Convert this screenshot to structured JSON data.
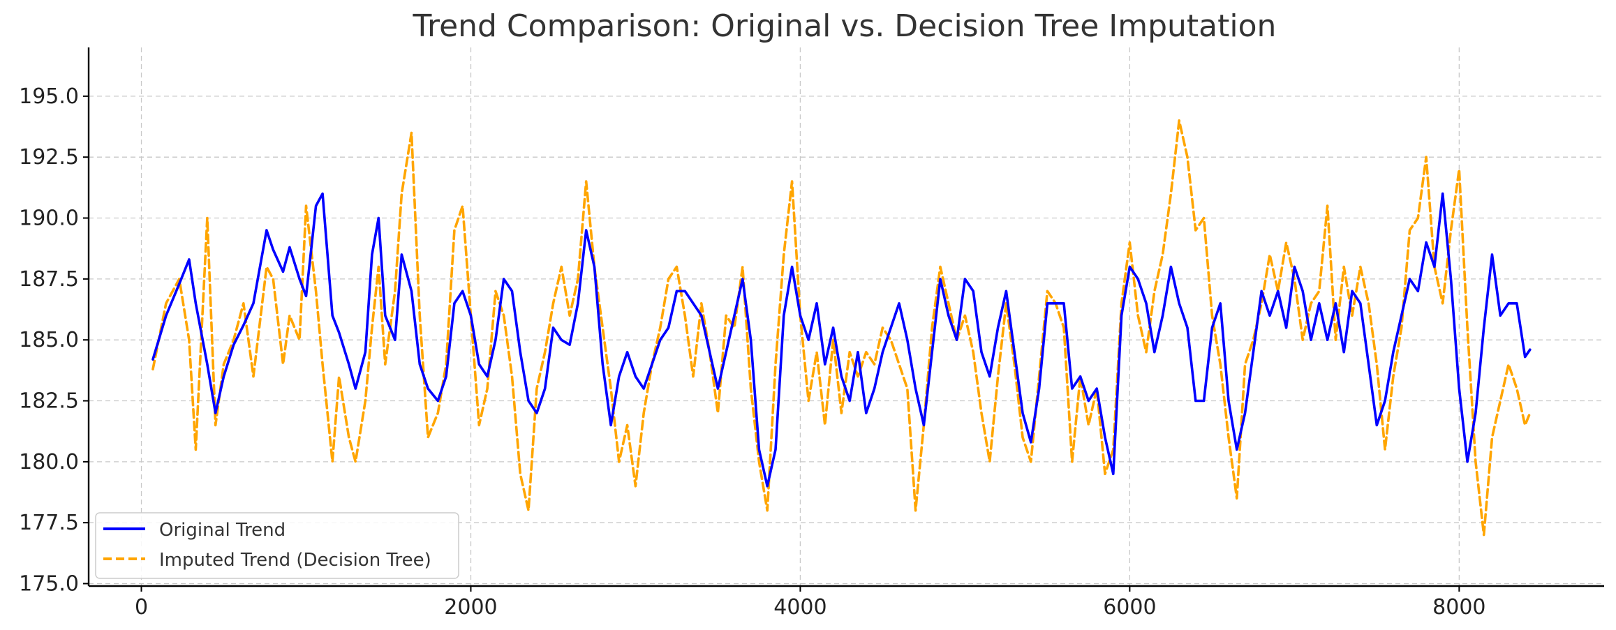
{
  "chart_data": {
    "type": "line",
    "title": "Trend Comparison: Original vs. Decision Tree Imputation",
    "xlabel": "",
    "ylabel": "",
    "xlim": [
      -320,
      8880
    ],
    "ylim": [
      174.9,
      197.0
    ],
    "xticks": [
      0,
      2000,
      4000,
      6000,
      8000
    ],
    "xtick_labels": [
      "0",
      "2000",
      "4000",
      "6000",
      "8000"
    ],
    "yticks": [
      175.0,
      177.5,
      180.0,
      182.5,
      185.0,
      187.5,
      190.0,
      192.5,
      195.0
    ],
    "ytick_labels": [
      "175.0",
      "177.5",
      "180.0",
      "182.5",
      "185.0",
      "187.5",
      "190.0",
      "192.5",
      "195.0"
    ],
    "grid": true,
    "legend": {
      "position": "lower-left"
    },
    "series": [
      {
        "name": "Original Trend",
        "color": "#0000ff",
        "style": "solid",
        "x": [
          70,
          150,
          230,
          290,
          330,
          400,
          450,
          500,
          560,
          620,
          680,
          760,
          800,
          860,
          900,
          960,
          1000,
          1060,
          1100,
          1160,
          1200,
          1260,
          1300,
          1360,
          1400,
          1440,
          1480,
          1540,
          1580,
          1640,
          1690,
          1740,
          1800,
          1850,
          1900,
          1950,
          2000,
          2050,
          2100,
          2150,
          2200,
          2250,
          2300,
          2350,
          2400,
          2450,
          2500,
          2550,
          2600,
          2650,
          2700,
          2750,
          2800,
          2850,
          2900,
          2950,
          3000,
          3050,
          3100,
          3150,
          3200,
          3250,
          3300,
          3350,
          3400,
          3450,
          3500,
          3550,
          3600,
          3650,
          3700,
          3750,
          3800,
          3850,
          3900,
          3950,
          4000,
          4050,
          4100,
          4150,
          4200,
          4250,
          4300,
          4350,
          4400,
          4450,
          4500,
          4550,
          4600,
          4650,
          4700,
          4750,
          4800,
          4850,
          4900,
          4950,
          5000,
          5050,
          5100,
          5150,
          5200,
          5250,
          5300,
          5350,
          5400,
          5450,
          5500,
          5550,
          5600,
          5650,
          5700,
          5750,
          5800,
          5850,
          5900,
          5950,
          6000,
          6050,
          6100,
          6150,
          6200,
          6250,
          6300,
          6350,
          6400,
          6450,
          6500,
          6550,
          6600,
          6650,
          6700,
          6750,
          6800,
          6850,
          6900,
          6950,
          7000,
          7050,
          7100,
          7150,
          7200,
          7250,
          7300,
          7350,
          7400,
          7450,
          7500,
          7550,
          7600,
          7650,
          7700,
          7750,
          7800,
          7850,
          7900,
          7950,
          8000,
          8050,
          8100,
          8150,
          8200,
          8250,
          8300,
          8350,
          8400,
          8430
        ],
        "y": [
          184.2,
          186.0,
          187.3,
          188.3,
          186.5,
          184.0,
          182.0,
          183.5,
          184.8,
          185.6,
          186.5,
          189.5,
          188.7,
          187.8,
          188.8,
          187.5,
          186.8,
          190.5,
          191.0,
          186.0,
          185.3,
          184.0,
          183.0,
          184.5,
          188.5,
          190.0,
          186.0,
          185.0,
          188.5,
          187.0,
          184.0,
          183.0,
          182.5,
          183.5,
          186.5,
          187.0,
          186.0,
          184.0,
          183.5,
          185.0,
          187.5,
          187.0,
          184.5,
          182.5,
          182.0,
          183.0,
          185.5,
          185.0,
          184.8,
          186.5,
          189.5,
          188.0,
          184.0,
          181.5,
          183.5,
          184.5,
          183.5,
          183.0,
          184.0,
          185.0,
          185.5,
          187.0,
          187.0,
          186.5,
          186.0,
          184.5,
          183.0,
          184.5,
          186.0,
          187.5,
          185.0,
          180.5,
          179.0,
          180.5,
          186.0,
          188.0,
          186.0,
          185.0,
          186.5,
          184.0,
          185.5,
          183.5,
          182.5,
          184.5,
          182.0,
          183.0,
          184.5,
          185.5,
          186.5,
          185.0,
          183.0,
          181.5,
          184.5,
          187.5,
          186.0,
          185.0,
          187.5,
          187.0,
          184.5,
          183.5,
          185.5,
          187.0,
          184.5,
          182.0,
          180.8,
          183.0,
          186.5,
          186.5,
          186.5,
          183.0,
          183.5,
          182.5,
          183.0,
          181.0,
          179.5,
          186.0,
          188.0,
          187.5,
          186.5,
          184.5,
          186.0,
          188.0,
          186.5,
          185.5,
          182.5,
          182.5,
          185.5,
          186.5,
          182.5,
          180.5,
          182.0,
          184.5,
          187.0,
          186.0,
          187.0,
          185.5,
          188.0,
          187.0,
          185.0,
          186.5,
          185.0,
          186.5,
          184.5,
          187.0,
          186.5,
          184.0,
          181.5,
          182.5,
          184.5,
          186.0,
          187.5,
          187.0,
          189.0,
          188.0,
          191.0,
          187.5,
          183.0,
          180.0,
          182.0,
          185.5,
          188.5,
          186.0,
          186.5,
          186.5,
          184.3,
          184.6
        ]
      },
      {
        "name": "Imputed Trend (Decision Tree)",
        "color": "#ffa500",
        "style": "dashed",
        "x": [
          70,
          150,
          230,
          290,
          330,
          400,
          450,
          500,
          560,
          620,
          680,
          760,
          800,
          860,
          900,
          960,
          1000,
          1060,
          1100,
          1160,
          1200,
          1260,
          1300,
          1360,
          1400,
          1440,
          1480,
          1540,
          1580,
          1640,
          1690,
          1740,
          1800,
          1850,
          1900,
          1950,
          2000,
          2050,
          2100,
          2150,
          2200,
          2250,
          2300,
          2350,
          2400,
          2450,
          2500,
          2550,
          2600,
          2650,
          2700,
          2750,
          2800,
          2850,
          2900,
          2950,
          3000,
          3050,
          3100,
          3150,
          3200,
          3250,
          3300,
          3350,
          3400,
          3450,
          3500,
          3550,
          3600,
          3650,
          3700,
          3750,
          3800,
          3850,
          3900,
          3950,
          4000,
          4050,
          4100,
          4150,
          4200,
          4250,
          4300,
          4350,
          4400,
          4450,
          4500,
          4550,
          4600,
          4650,
          4700,
          4750,
          4800,
          4850,
          4900,
          4950,
          5000,
          5050,
          5100,
          5150,
          5200,
          5250,
          5300,
          5350,
          5400,
          5450,
          5500,
          5550,
          5600,
          5650,
          5700,
          5750,
          5800,
          5850,
          5900,
          5950,
          6000,
          6050,
          6100,
          6150,
          6200,
          6250,
          6300,
          6350,
          6400,
          6450,
          6500,
          6550,
          6600,
          6650,
          6700,
          6750,
          6800,
          6850,
          6900,
          6950,
          7000,
          7050,
          7100,
          7150,
          7200,
          7250,
          7300,
          7350,
          7400,
          7450,
          7500,
          7550,
          7600,
          7650,
          7700,
          7750,
          7800,
          7850,
          7900,
          7950,
          8000,
          8050,
          8100,
          8150,
          8200,
          8250,
          8300,
          8350,
          8400,
          8430
        ],
        "y": [
          183.8,
          186.5,
          187.5,
          185.0,
          180.5,
          190.0,
          181.5,
          184.0,
          185.0,
          186.5,
          183.5,
          188.0,
          187.5,
          184.0,
          186.0,
          185.0,
          190.5,
          187.0,
          184.0,
          180.0,
          183.5,
          181.0,
          180.0,
          182.5,
          185.5,
          188.0,
          184.0,
          187.0,
          191.0,
          193.5,
          186.0,
          181.0,
          182.0,
          184.0,
          189.5,
          190.5,
          186.0,
          181.5,
          183.0,
          187.0,
          186.0,
          183.5,
          179.5,
          178.0,
          183.0,
          184.5,
          186.5,
          188.0,
          186.0,
          187.5,
          191.5,
          188.0,
          185.5,
          183.0,
          180.0,
          181.5,
          179.0,
          182.0,
          184.0,
          185.5,
          187.5,
          188.0,
          186.0,
          183.5,
          186.5,
          184.5,
          182.0,
          186.0,
          185.5,
          188.0,
          183.0,
          180.0,
          178.0,
          184.0,
          188.5,
          191.5,
          186.0,
          182.5,
          184.5,
          181.5,
          185.0,
          182.0,
          184.5,
          183.5,
          184.5,
          184.0,
          185.5,
          185.0,
          184.0,
          183.0,
          178.0,
          181.5,
          185.5,
          188.0,
          186.5,
          185.0,
          186.0,
          184.5,
          182.0,
          180.0,
          183.5,
          186.5,
          184.0,
          181.0,
          180.0,
          183.5,
          187.0,
          186.5,
          185.5,
          180.0,
          183.5,
          181.5,
          183.0,
          179.5,
          180.5,
          186.5,
          189.0,
          186.0,
          184.5,
          187.0,
          188.5,
          191.0,
          194.0,
          192.5,
          189.5,
          190.0,
          186.0,
          184.0,
          181.0,
          178.5,
          184.0,
          185.0,
          186.5,
          188.5,
          187.0,
          189.0,
          187.5,
          185.0,
          186.5,
          187.0,
          190.5,
          185.0,
          188.0,
          186.0,
          188.0,
          186.5,
          184.0,
          180.5,
          183.5,
          185.5,
          189.5,
          190.0,
          192.5,
          188.0,
          186.5,
          189.5,
          192.0,
          185.5,
          180.0,
          177.0,
          181.0,
          182.5,
          184.0,
          183.0,
          181.5,
          182.0
        ]
      }
    ]
  }
}
